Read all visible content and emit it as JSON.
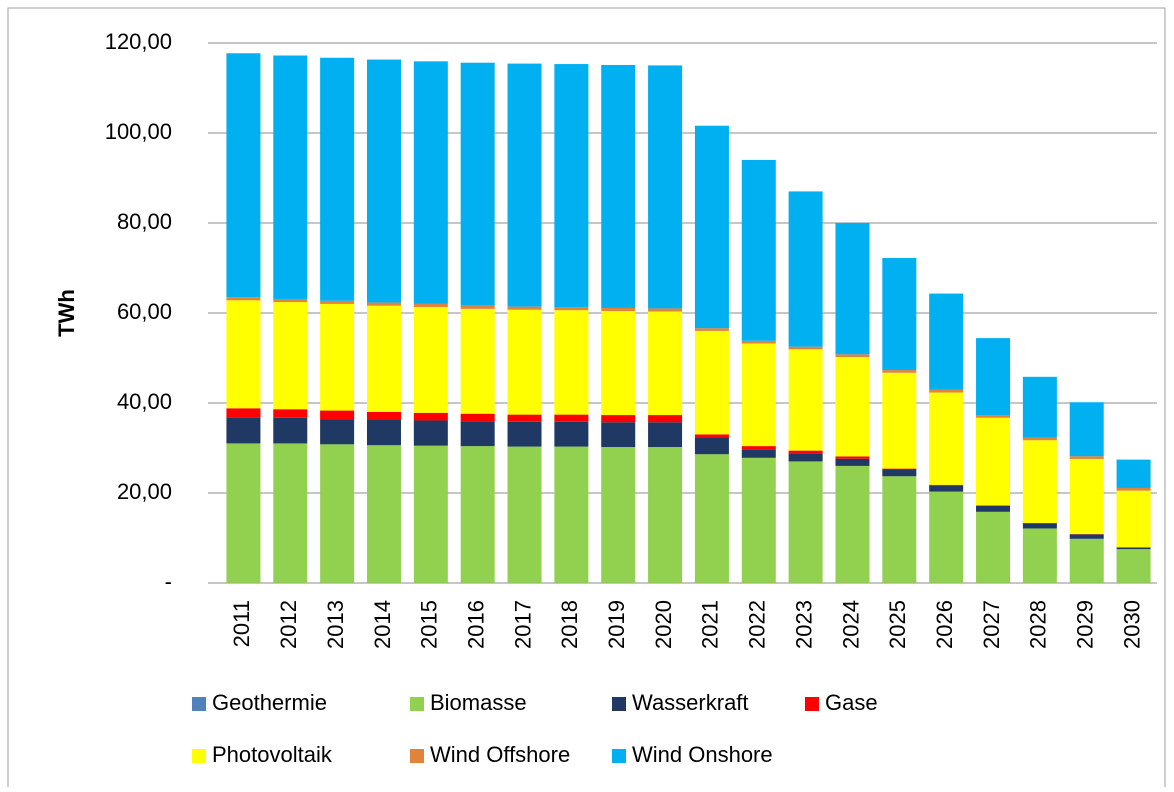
{
  "chart_data": {
    "type": "stacked_bar",
    "y_label": "TWh",
    "categories": [
      "2011",
      "2012",
      "2013",
      "2014",
      "2015",
      "2016",
      "2017",
      "2018",
      "2019",
      "2020",
      "2021",
      "2022",
      "2023",
      "2024",
      "2025",
      "2026",
      "2027",
      "2028",
      "2029",
      "2030"
    ],
    "series": [
      {
        "name": "Geothermie",
        "color": "#4f81bd",
        "values": [
          0.02,
          0.02,
          0.02,
          0.02,
          0.02,
          0.02,
          0.02,
          0.02,
          0.02,
          0.02,
          0.02,
          0.02,
          0.02,
          0.02,
          0.02,
          0.02,
          0.02,
          0.02,
          0.02,
          0.02
        ]
      },
      {
        "name": "Biomasse",
        "color": "#92d050",
        "values": [
          31.0,
          31.0,
          30.8,
          30.6,
          30.5,
          30.4,
          30.3,
          30.3,
          30.2,
          30.2,
          28.6,
          27.8,
          27.0,
          26.0,
          23.7,
          20.3,
          15.8,
          12.1,
          9.8,
          7.5
        ]
      },
      {
        "name": "Wasserkraft",
        "color": "#1f3864",
        "values": [
          5.8,
          5.7,
          5.6,
          5.6,
          5.6,
          5.5,
          5.5,
          5.5,
          5.5,
          5.5,
          3.6,
          1.9,
          1.8,
          1.6,
          1.5,
          1.4,
          1.3,
          1.1,
          1.0,
          0.4
        ]
      },
      {
        "name": "Gase",
        "color": "#ff0000",
        "values": [
          2.0,
          1.9,
          1.9,
          1.8,
          1.7,
          1.7,
          1.6,
          1.6,
          1.6,
          1.6,
          0.8,
          0.7,
          0.6,
          0.5,
          0.2,
          0.1,
          0.1,
          0.1,
          0.05,
          0
        ]
      },
      {
        "name": "Photovoltaik",
        "color": "#ffff00",
        "values": [
          24.0,
          23.8,
          23.7,
          23.6,
          23.5,
          23.3,
          23.3,
          23.2,
          23.1,
          23.0,
          23.0,
          22.8,
          22.5,
          22.1,
          21.3,
          20.5,
          19.5,
          18.4,
          16.7,
          12.6
        ]
      },
      {
        "name": "Wind Offshore",
        "color": "#e0843c",
        "values": [
          0.7,
          0.7,
          0.7,
          0.7,
          0.7,
          0.7,
          0.7,
          0.7,
          0.7,
          0.7,
          0.6,
          0.6,
          0.6,
          0.6,
          0.6,
          0.6,
          0.6,
          0.6,
          0.6,
          0.6
        ]
      },
      {
        "name": "Wind Onshore",
        "color": "#00b0f0",
        "values": [
          54.2,
          54.1,
          54.0,
          54.0,
          53.9,
          54.0,
          54.0,
          54.0,
          54.0,
          54.0,
          45.0,
          40.2,
          34.5,
          29.2,
          24.9,
          21.4,
          17.1,
          13.5,
          12.0,
          6.3
        ]
      }
    ],
    "ylim": [
      0,
      120
    ],
    "yticks": [
      {
        "value": 0,
        "label": "-"
      },
      {
        "value": 20,
        "label": "20,00"
      },
      {
        "value": 40,
        "label": "40,00"
      },
      {
        "value": 60,
        "label": "60,00"
      },
      {
        "value": 80,
        "label": "80,00"
      },
      {
        "value": 100,
        "label": "100,00"
      },
      {
        "value": 120,
        "label": "120,00"
      }
    ],
    "grid": true
  }
}
